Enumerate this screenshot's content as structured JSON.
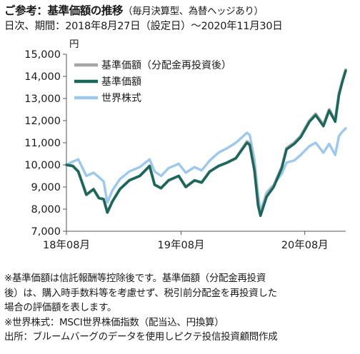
{
  "header": {
    "title": "ご参考：基準価額の推移",
    "title_sub": "（毎月決算型、為替ヘッジあり）",
    "period": "日次、期間：2018年8月27日（設定日）～2020年11月30日",
    "unit": "円"
  },
  "notes": [
    "※基準価額は信託報酬等控除後です。基準価額（分配金再投資",
    "後）は、購入時手数料等を考慮せず、税引前分配金を再投資した",
    "場合の評価額を表します。",
    "※世界株式：MSCI世界株価指数（配当込、円換算）",
    "出所：ブルームバーグのデータを使用しピクテ投信投資顧問作成"
  ],
  "colors": {
    "reinvested": "#a6a6a6",
    "nav": "#17675b",
    "world": "#9cc8ef",
    "axis": "#555555"
  },
  "chart_data": {
    "type": "line",
    "x_start": "2018-08-27",
    "x_end": "2020-11-30",
    "ylim": [
      7000,
      15000
    ],
    "y_ticks": [
      7000,
      8000,
      9000,
      10000,
      11000,
      12000,
      13000,
      14000,
      15000
    ],
    "y_tick_labels": [
      "7,000",
      "8,000",
      "9,000",
      "10,000",
      "11,000",
      "12,000",
      "13,000",
      "14,000",
      "15,000"
    ],
    "x_tick_dates": [
      "2018-08-27",
      "2019-08-01",
      "2020-08-01"
    ],
    "x_tick_labels": [
      "18年08月",
      "19年08月",
      "20年08月"
    ],
    "legend_position": "top-left",
    "series": [
      {
        "name": "基準価額（分配金再投資後）",
        "key": "reinvested",
        "points": [
          [
            "2018-08-27",
            10000
          ],
          [
            "2018-09-15",
            9950
          ],
          [
            "2018-10-01",
            9700
          ],
          [
            "2018-10-25",
            8650
          ],
          [
            "2018-11-15",
            8900
          ],
          [
            "2018-12-01",
            8500
          ],
          [
            "2018-12-15",
            8450
          ],
          [
            "2018-12-26",
            7850
          ],
          [
            "2019-01-10",
            8350
          ],
          [
            "2019-02-01",
            8900
          ],
          [
            "2019-03-01",
            9300
          ],
          [
            "2019-04-01",
            9500
          ],
          [
            "2019-04-30",
            9950
          ],
          [
            "2019-05-15",
            9100
          ],
          [
            "2019-06-03",
            8950
          ],
          [
            "2019-06-25",
            9300
          ],
          [
            "2019-07-25",
            9500
          ],
          [
            "2019-08-15",
            9000
          ],
          [
            "2019-09-10",
            9300
          ],
          [
            "2019-10-01",
            9200
          ],
          [
            "2019-10-25",
            9700
          ],
          [
            "2019-11-20",
            9950
          ],
          [
            "2019-12-15",
            10100
          ],
          [
            "2020-01-10",
            10300
          ],
          [
            "2020-02-12",
            11050
          ],
          [
            "2020-02-20",
            10950
          ],
          [
            "2020-03-05",
            9800
          ],
          [
            "2020-03-16",
            8200
          ],
          [
            "2020-03-23",
            7750
          ],
          [
            "2020-04-10",
            8600
          ],
          [
            "2020-05-01",
            9050
          ],
          [
            "2020-05-25",
            9900
          ],
          [
            "2020-06-08",
            10750
          ],
          [
            "2020-07-01",
            11000
          ],
          [
            "2020-07-20",
            11300
          ],
          [
            "2020-08-15",
            12000
          ],
          [
            "2020-09-02",
            12300
          ],
          [
            "2020-09-25",
            11800
          ],
          [
            "2020-10-12",
            12500
          ],
          [
            "2020-10-30",
            12000
          ],
          [
            "2020-11-10",
            13200
          ],
          [
            "2020-11-20",
            13800
          ],
          [
            "2020-11-30",
            14300
          ]
        ]
      },
      {
        "name": "基準価額",
        "key": "nav",
        "points": [
          [
            "2018-08-27",
            10000
          ],
          [
            "2018-09-15",
            9950
          ],
          [
            "2018-10-01",
            9700
          ],
          [
            "2018-10-25",
            8650
          ],
          [
            "2018-11-15",
            8900
          ],
          [
            "2018-12-01",
            8500
          ],
          [
            "2018-12-15",
            8450
          ],
          [
            "2018-12-26",
            7850
          ],
          [
            "2019-01-10",
            8350
          ],
          [
            "2019-02-01",
            8900
          ],
          [
            "2019-03-01",
            9300
          ],
          [
            "2019-04-01",
            9500
          ],
          [
            "2019-04-30",
            9950
          ],
          [
            "2019-05-15",
            9100
          ],
          [
            "2019-06-03",
            8950
          ],
          [
            "2019-06-25",
            9300
          ],
          [
            "2019-07-25",
            9500
          ],
          [
            "2019-08-15",
            9000
          ],
          [
            "2019-09-10",
            9300
          ],
          [
            "2019-10-01",
            9200
          ],
          [
            "2019-10-25",
            9700
          ],
          [
            "2019-11-20",
            9950
          ],
          [
            "2019-12-15",
            10100
          ],
          [
            "2020-01-10",
            10300
          ],
          [
            "2020-02-12",
            11000
          ],
          [
            "2020-02-20",
            10900
          ],
          [
            "2020-03-05",
            9750
          ],
          [
            "2020-03-16",
            8150
          ],
          [
            "2020-03-23",
            7700
          ],
          [
            "2020-04-10",
            8550
          ],
          [
            "2020-05-01",
            9000
          ],
          [
            "2020-05-25",
            9850
          ],
          [
            "2020-06-08",
            10700
          ],
          [
            "2020-07-01",
            10950
          ],
          [
            "2020-07-20",
            11250
          ],
          [
            "2020-08-15",
            11950
          ],
          [
            "2020-09-02",
            12250
          ],
          [
            "2020-09-25",
            11750
          ],
          [
            "2020-10-12",
            12450
          ],
          [
            "2020-10-30",
            11950
          ],
          [
            "2020-11-10",
            13150
          ],
          [
            "2020-11-20",
            13750
          ],
          [
            "2020-11-30",
            14250
          ]
        ]
      },
      {
        "name": "世界株式",
        "key": "world",
        "points": [
          [
            "2018-08-27",
            10000
          ],
          [
            "2018-09-15",
            10150
          ],
          [
            "2018-10-01",
            10250
          ],
          [
            "2018-10-25",
            9500
          ],
          [
            "2018-11-15",
            9650
          ],
          [
            "2018-12-01",
            9450
          ],
          [
            "2018-12-15",
            9250
          ],
          [
            "2018-12-26",
            8300
          ],
          [
            "2019-01-10",
            8850
          ],
          [
            "2019-02-01",
            9350
          ],
          [
            "2019-03-01",
            9700
          ],
          [
            "2019-04-01",
            9900
          ],
          [
            "2019-04-30",
            10250
          ],
          [
            "2019-05-15",
            9700
          ],
          [
            "2019-06-03",
            9500
          ],
          [
            "2019-06-25",
            9850
          ],
          [
            "2019-07-25",
            10050
          ],
          [
            "2019-08-15",
            9650
          ],
          [
            "2019-09-10",
            9900
          ],
          [
            "2019-10-01",
            9750
          ],
          [
            "2019-10-25",
            10200
          ],
          [
            "2019-11-20",
            10550
          ],
          [
            "2019-12-15",
            10750
          ],
          [
            "2020-01-10",
            11000
          ],
          [
            "2020-02-12",
            11450
          ],
          [
            "2020-02-20",
            11350
          ],
          [
            "2020-03-05",
            10250
          ],
          [
            "2020-03-16",
            8650
          ],
          [
            "2020-03-23",
            7900
          ],
          [
            "2020-04-10",
            8750
          ],
          [
            "2020-05-01",
            9100
          ],
          [
            "2020-05-25",
            9600
          ],
          [
            "2020-06-08",
            10100
          ],
          [
            "2020-07-01",
            10200
          ],
          [
            "2020-07-20",
            10450
          ],
          [
            "2020-08-15",
            10850
          ],
          [
            "2020-09-02",
            11000
          ],
          [
            "2020-09-25",
            10550
          ],
          [
            "2020-10-12",
            10950
          ],
          [
            "2020-10-30",
            10450
          ],
          [
            "2020-11-10",
            11300
          ],
          [
            "2020-11-20",
            11500
          ],
          [
            "2020-11-30",
            11650
          ]
        ]
      }
    ]
  }
}
